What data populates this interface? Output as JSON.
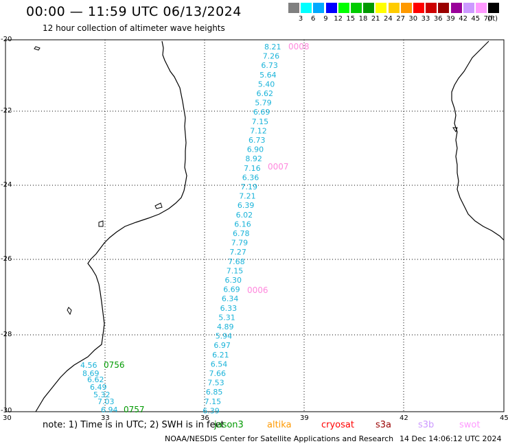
{
  "title": "00:00 — 11:59 UTC 06/13/2024",
  "subtitle": "12 hour collection of altimeter wave heights",
  "legend": {
    "labels": [
      "3",
      "6",
      "9",
      "12",
      "15",
      "18",
      "21",
      "24",
      "27",
      "30",
      "33",
      "36",
      "39",
      "42",
      "45",
      "70"
    ],
    "colors": [
      "#808080",
      "#00ffff",
      "#00aaff",
      "#0000ff",
      "#00ff00",
      "#00cc00",
      "#009900",
      "#ffff00",
      "#ffcc00",
      "#ff9900",
      "#ff0000",
      "#cc0000",
      "#990000",
      "#990099",
      "#cc99ff",
      "#ff99ff",
      "#000000"
    ],
    "unit": "(ft)"
  },
  "axes": {
    "x_ticks": [
      "30",
      "33",
      "36",
      "39",
      "42",
      "45"
    ],
    "y_ticks": [
      "-20",
      "-22",
      "-24",
      "-26",
      "-28",
      "-30"
    ]
  },
  "wave_color": "#1ab3d9",
  "track_main": {
    "values": [
      "8.21",
      "7.26",
      "6.73",
      "5.64",
      "5.40",
      "6.62",
      "5.79",
      "6.69",
      "7.15",
      "7.12",
      "6.73",
      "6.90",
      "8.92",
      "7.16",
      "6.36",
      "7.19",
      "7.21",
      "6.39",
      "6.02",
      "6.16",
      "6.78",
      "7.79",
      "7.27",
      "7.68",
      "7.15",
      "6.30",
      "6.69",
      "6.34",
      "6.33",
      "5.31",
      "4.89",
      "5.94",
      "6.97",
      "6.21",
      "6.54",
      "7.66",
      "7.53",
      "6.85",
      "7.15",
      "6.39"
    ],
    "time_labels": [
      {
        "text": "0008",
        "color": "#ff88dd"
      },
      {
        "text": "0007",
        "color": "#ff88dd"
      },
      {
        "text": "0006",
        "color": "#ff88dd"
      }
    ]
  },
  "track_coast": {
    "values": [
      "4.56",
      "8.69",
      "6.62",
      "6.49",
      "5.32",
      "7.03",
      "6.94"
    ],
    "time_labels": [
      {
        "text": "0756",
        "color": "#009900"
      },
      {
        "text": "0757",
        "color": "#009900"
      }
    ]
  },
  "note": "note: 1) Time is in UTC; 2) SWH is in feet",
  "missions": [
    {
      "text": "jason3",
      "color": "#009900"
    },
    {
      "text": "altika",
      "color": "#ff9900"
    },
    {
      "text": "cryosat",
      "color": "#ff0000"
    },
    {
      "text": "s3a",
      "color": "#990000"
    },
    {
      "text": "s3b",
      "color": "#cc99ff"
    },
    {
      "text": "swot",
      "color": "#ff99ff"
    }
  ],
  "credit": "NOAA/NESDIS Center for Satellite Applications and Research",
  "credit_date": "14 Dec 14:06:12 UTC 2024"
}
